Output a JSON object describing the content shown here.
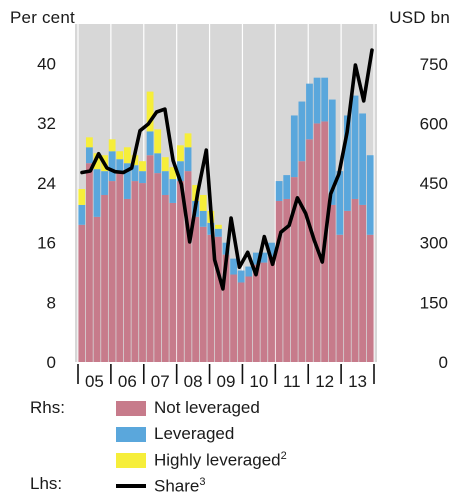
{
  "units": {
    "left": "Per cent",
    "right": "USD bn"
  },
  "legend": {
    "rhs_label": "Rhs:",
    "lhs_label": "Lhs:",
    "items": [
      {
        "text": "Not leveraged",
        "sup": "",
        "color": "#c77b8b"
      },
      {
        "text": "Leveraged",
        "sup": "",
        "color": "#5aa7dc"
      },
      {
        "text": "Highly leveraged",
        "sup": "2",
        "color": "#f6ee3a"
      },
      {
        "text": "Share",
        "sup": "3",
        "color": "#000000"
      }
    ]
  },
  "chart_data": {
    "type": "bar",
    "stacked": true,
    "title": "",
    "grid": true,
    "x_labels": [
      "05",
      "06",
      "07",
      "08",
      "09",
      "10",
      "11",
      "12",
      "13"
    ],
    "right_axis": {
      "unit": "USD bn",
      "ticks": [
        0,
        150,
        300,
        450,
        600,
        750
      ],
      "ylim": [
        0,
        850
      ]
    },
    "left_axis": {
      "unit": "Per cent",
      "ticks": [
        0,
        8,
        16,
        24,
        32,
        40
      ],
      "ylim": [
        0,
        45.3
      ]
    },
    "bar_series": [
      {
        "name": "Not leveraged",
        "color": "#c77b8b",
        "values": [
          345,
          500,
          365,
          420,
          455,
          480,
          410,
          455,
          450,
          520,
          475,
          420,
          400,
          455,
          480,
          365,
          340,
          320,
          315,
          270,
          220,
          200,
          215,
          245,
          250,
          265,
          405,
          410,
          465,
          505,
          560,
          600,
          605,
          395,
          320,
          380,
          410,
          395,
          320
        ]
      },
      {
        "name": "Leveraged",
        "color": "#5aa7dc",
        "values": [
          50,
          40,
          120,
          60,
          75,
          30,
          90,
          40,
          30,
          60,
          50,
          60,
          60,
          50,
          60,
          40,
          40,
          30,
          20,
          30,
          40,
          30,
          25,
          30,
          25,
          35,
          50,
          60,
          155,
          150,
          140,
          115,
          110,
          265,
          160,
          240,
          260,
          230,
          200
        ]
      },
      {
        "name": "Highly leveraged",
        "color": "#f6ee3a",
        "values": [
          40,
          25,
          40,
          40,
          30,
          20,
          40,
          25,
          25,
          100,
          60,
          35,
          30,
          40,
          35,
          40,
          40,
          30,
          10,
          0,
          0,
          0,
          0,
          0,
          0,
          0,
          0,
          0,
          0,
          0,
          0,
          0,
          0,
          0,
          0,
          0,
          0,
          0,
          0
        ]
      }
    ],
    "line_series": {
      "name": "Share",
      "axis": "left",
      "values": [
        25.4,
        25.6,
        27.9,
        26.0,
        25.5,
        25.4,
        26.0,
        31.0,
        31.9,
        33.5,
        33.9,
        27.0,
        23.8,
        16.1,
        22.9,
        28.4,
        13.7,
        9.8,
        19.3,
        12.7,
        14.7,
        11.7,
        16.8,
        13.1,
        17.4,
        18.3,
        22.0,
        19.9,
        16.4,
        13.4,
        22.5,
        25.2,
        30.8,
        39.8,
        35.0,
        41.8
      ]
    }
  }
}
